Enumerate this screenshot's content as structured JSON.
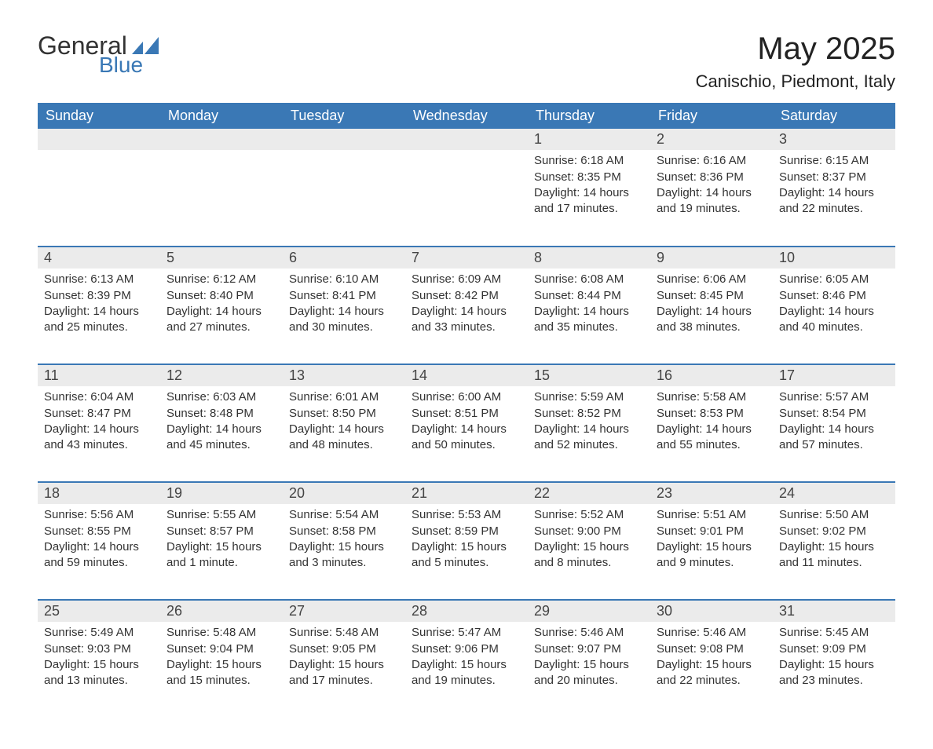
{
  "logo": {
    "word1": "General",
    "word2": "Blue",
    "word1_color": "#333333",
    "word2_color": "#3a78b5",
    "triangle_color": "#3a78b5"
  },
  "title": "May 2025",
  "subtitle": "Canischio, Piedmont, Italy",
  "colors": {
    "header_bg": "#3a78b5",
    "header_text": "#ffffff",
    "daynum_bg": "#ebebeb",
    "daynum_text": "#444444",
    "body_text": "#333333",
    "row_divider": "#3a78b5",
    "page_bg": "#ffffff"
  },
  "fonts": {
    "title_size_pt": 30,
    "subtitle_size_pt": 17,
    "header_size_pt": 14,
    "daynum_size_pt": 14,
    "body_size_pt": 11,
    "family": "Arial"
  },
  "weekday_headers": [
    "Sunday",
    "Monday",
    "Tuesday",
    "Wednesday",
    "Thursday",
    "Friday",
    "Saturday"
  ],
  "weeks": [
    [
      null,
      null,
      null,
      null,
      {
        "day": "1",
        "sunrise": "Sunrise: 6:18 AM",
        "sunset": "Sunset: 8:35 PM",
        "daylight": "Daylight: 14 hours and 17 minutes."
      },
      {
        "day": "2",
        "sunrise": "Sunrise: 6:16 AM",
        "sunset": "Sunset: 8:36 PM",
        "daylight": "Daylight: 14 hours and 19 minutes."
      },
      {
        "day": "3",
        "sunrise": "Sunrise: 6:15 AM",
        "sunset": "Sunset: 8:37 PM",
        "daylight": "Daylight: 14 hours and 22 minutes."
      }
    ],
    [
      {
        "day": "4",
        "sunrise": "Sunrise: 6:13 AM",
        "sunset": "Sunset: 8:39 PM",
        "daylight": "Daylight: 14 hours and 25 minutes."
      },
      {
        "day": "5",
        "sunrise": "Sunrise: 6:12 AM",
        "sunset": "Sunset: 8:40 PM",
        "daylight": "Daylight: 14 hours and 27 minutes."
      },
      {
        "day": "6",
        "sunrise": "Sunrise: 6:10 AM",
        "sunset": "Sunset: 8:41 PM",
        "daylight": "Daylight: 14 hours and 30 minutes."
      },
      {
        "day": "7",
        "sunrise": "Sunrise: 6:09 AM",
        "sunset": "Sunset: 8:42 PM",
        "daylight": "Daylight: 14 hours and 33 minutes."
      },
      {
        "day": "8",
        "sunrise": "Sunrise: 6:08 AM",
        "sunset": "Sunset: 8:44 PM",
        "daylight": "Daylight: 14 hours and 35 minutes."
      },
      {
        "day": "9",
        "sunrise": "Sunrise: 6:06 AM",
        "sunset": "Sunset: 8:45 PM",
        "daylight": "Daylight: 14 hours and 38 minutes."
      },
      {
        "day": "10",
        "sunrise": "Sunrise: 6:05 AM",
        "sunset": "Sunset: 8:46 PM",
        "daylight": "Daylight: 14 hours and 40 minutes."
      }
    ],
    [
      {
        "day": "11",
        "sunrise": "Sunrise: 6:04 AM",
        "sunset": "Sunset: 8:47 PM",
        "daylight": "Daylight: 14 hours and 43 minutes."
      },
      {
        "day": "12",
        "sunrise": "Sunrise: 6:03 AM",
        "sunset": "Sunset: 8:48 PM",
        "daylight": "Daylight: 14 hours and 45 minutes."
      },
      {
        "day": "13",
        "sunrise": "Sunrise: 6:01 AM",
        "sunset": "Sunset: 8:50 PM",
        "daylight": "Daylight: 14 hours and 48 minutes."
      },
      {
        "day": "14",
        "sunrise": "Sunrise: 6:00 AM",
        "sunset": "Sunset: 8:51 PM",
        "daylight": "Daylight: 14 hours and 50 minutes."
      },
      {
        "day": "15",
        "sunrise": "Sunrise: 5:59 AM",
        "sunset": "Sunset: 8:52 PM",
        "daylight": "Daylight: 14 hours and 52 minutes."
      },
      {
        "day": "16",
        "sunrise": "Sunrise: 5:58 AM",
        "sunset": "Sunset: 8:53 PM",
        "daylight": "Daylight: 14 hours and 55 minutes."
      },
      {
        "day": "17",
        "sunrise": "Sunrise: 5:57 AM",
        "sunset": "Sunset: 8:54 PM",
        "daylight": "Daylight: 14 hours and 57 minutes."
      }
    ],
    [
      {
        "day": "18",
        "sunrise": "Sunrise: 5:56 AM",
        "sunset": "Sunset: 8:55 PM",
        "daylight": "Daylight: 14 hours and 59 minutes."
      },
      {
        "day": "19",
        "sunrise": "Sunrise: 5:55 AM",
        "sunset": "Sunset: 8:57 PM",
        "daylight": "Daylight: 15 hours and 1 minute."
      },
      {
        "day": "20",
        "sunrise": "Sunrise: 5:54 AM",
        "sunset": "Sunset: 8:58 PM",
        "daylight": "Daylight: 15 hours and 3 minutes."
      },
      {
        "day": "21",
        "sunrise": "Sunrise: 5:53 AM",
        "sunset": "Sunset: 8:59 PM",
        "daylight": "Daylight: 15 hours and 5 minutes."
      },
      {
        "day": "22",
        "sunrise": "Sunrise: 5:52 AM",
        "sunset": "Sunset: 9:00 PM",
        "daylight": "Daylight: 15 hours and 8 minutes."
      },
      {
        "day": "23",
        "sunrise": "Sunrise: 5:51 AM",
        "sunset": "Sunset: 9:01 PM",
        "daylight": "Daylight: 15 hours and 9 minutes."
      },
      {
        "day": "24",
        "sunrise": "Sunrise: 5:50 AM",
        "sunset": "Sunset: 9:02 PM",
        "daylight": "Daylight: 15 hours and 11 minutes."
      }
    ],
    [
      {
        "day": "25",
        "sunrise": "Sunrise: 5:49 AM",
        "sunset": "Sunset: 9:03 PM",
        "daylight": "Daylight: 15 hours and 13 minutes."
      },
      {
        "day": "26",
        "sunrise": "Sunrise: 5:48 AM",
        "sunset": "Sunset: 9:04 PM",
        "daylight": "Daylight: 15 hours and 15 minutes."
      },
      {
        "day": "27",
        "sunrise": "Sunrise: 5:48 AM",
        "sunset": "Sunset: 9:05 PM",
        "daylight": "Daylight: 15 hours and 17 minutes."
      },
      {
        "day": "28",
        "sunrise": "Sunrise: 5:47 AM",
        "sunset": "Sunset: 9:06 PM",
        "daylight": "Daylight: 15 hours and 19 minutes."
      },
      {
        "day": "29",
        "sunrise": "Sunrise: 5:46 AM",
        "sunset": "Sunset: 9:07 PM",
        "daylight": "Daylight: 15 hours and 20 minutes."
      },
      {
        "day": "30",
        "sunrise": "Sunrise: 5:46 AM",
        "sunset": "Sunset: 9:08 PM",
        "daylight": "Daylight: 15 hours and 22 minutes."
      },
      {
        "day": "31",
        "sunrise": "Sunrise: 5:45 AM",
        "sunset": "Sunset: 9:09 PM",
        "daylight": "Daylight: 15 hours and 23 minutes."
      }
    ]
  ]
}
